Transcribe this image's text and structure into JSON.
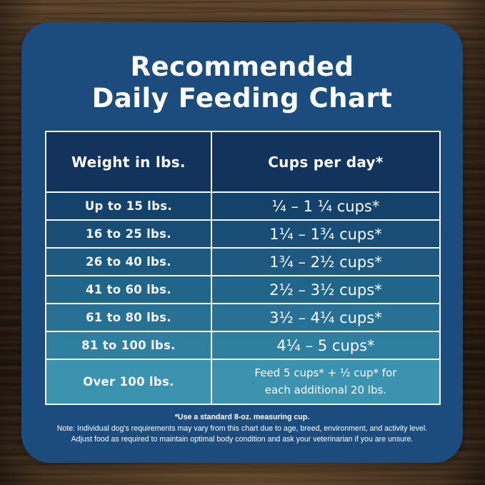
{
  "title": {
    "line1": "Recommended",
    "line2": "Daily Feeding Chart"
  },
  "chart_data": {
    "type": "table",
    "title": "Recommended Daily Feeding Chart",
    "columns": {
      "weight": "Weight in lbs.",
      "cups": "Cups per day*"
    },
    "rows": [
      {
        "weight": "Up to 15 lbs.",
        "cups": "¼ – 1 ¼ cups*"
      },
      {
        "weight": "16 to 25 lbs.",
        "cups": "1¼ – 1¾  cups*"
      },
      {
        "weight": "26 to 40 lbs.",
        "cups": "1¾ – 2½ cups*"
      },
      {
        "weight": "41 to 60 lbs.",
        "cups": "2½ – 3½ cups*"
      },
      {
        "weight": "61 to 80 lbs.",
        "cups": "3½ – 4¼ cups*"
      },
      {
        "weight": "81 to 100 lbs.",
        "cups": "4¼ – 5 cups*"
      },
      {
        "weight": "Over 100 lbs.",
        "cups": "Feed 5 cups* + ½ cup* for\neach additional 20 lbs."
      }
    ],
    "header_color": "#12335b",
    "row_colors": [
      "#15426b",
      "#184d75",
      "#1d5980",
      "#22658b",
      "#287195",
      "#2f7fa0",
      "#3b93af"
    ]
  },
  "footer": {
    "note1": "*Use a standard 8-oz. measuring cup.",
    "note2": "Note: Individual dog's requirements may vary from this chart due to age, breed, environment, and activity level.",
    "note3": "Adjust food as required to maintain optimal body condition and ask your veterinarian if you are unsure."
  },
  "colors": {
    "card": "#1b4c7d",
    "table_border": "#ffffff",
    "text": "#ffffff"
  }
}
